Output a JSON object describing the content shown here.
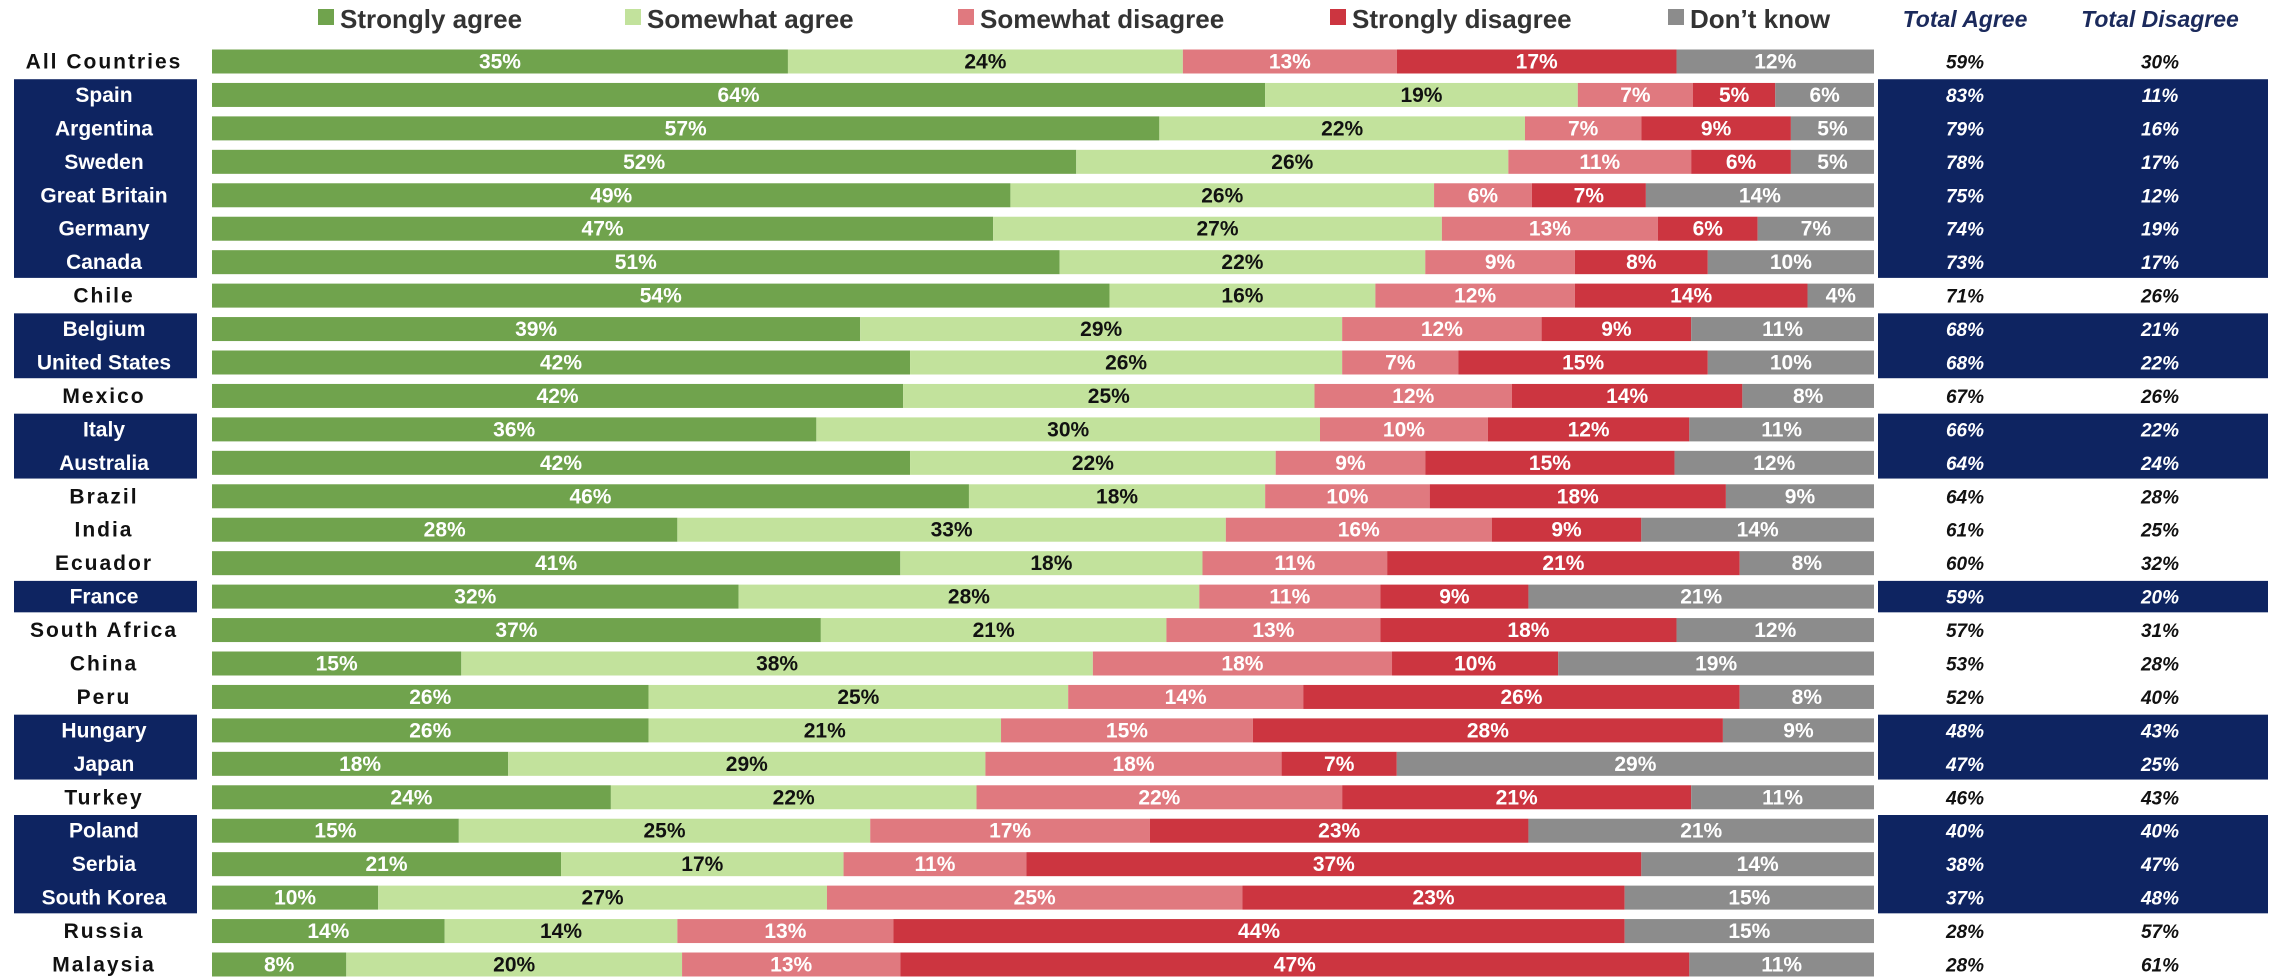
{
  "chart_data": {
    "type": "bar",
    "orientation": "horizontal",
    "stacked": true,
    "title": "",
    "xlabel": "",
    "ylabel": "",
    "xlim": [
      0,
      100
    ],
    "grid": false,
    "legend_position": "top",
    "colors": {
      "strongly_agree": "#70a34d",
      "somewhat_agree": "#c2e29c",
      "somewhat_disagree": "#e0797f",
      "strongly_disagree": "#cc3540",
      "dont_know": "#8c8c8c",
      "highlight_band": "#0e2461"
    },
    "series_colors": [
      "#70a34d",
      "#c2e29c",
      "#e0797f",
      "#cc3540",
      "#8c8c8c"
    ],
    "series_label_colors": [
      "#ffffff",
      "#111111",
      "#ffffff",
      "#ffffff",
      "#ffffff"
    ],
    "categories": [
      "All Countries",
      "Spain",
      "Argentina",
      "Sweden",
      "Great Britain",
      "Germany",
      "Canada",
      "Chile",
      "Belgium",
      "United States",
      "Mexico",
      "Italy",
      "Australia",
      "Brazil",
      "India",
      "Ecuador",
      "France",
      "South Africa",
      "China",
      "Peru",
      "Hungary",
      "Japan",
      "Turkey",
      "Poland",
      "Serbia",
      "South Korea",
      "Russia",
      "Malaysia"
    ],
    "highlighted": [
      false,
      true,
      true,
      true,
      true,
      true,
      true,
      false,
      true,
      true,
      false,
      true,
      true,
      false,
      false,
      false,
      true,
      false,
      false,
      false,
      true,
      true,
      false,
      true,
      true,
      true,
      false,
      false
    ],
    "series": [
      {
        "name": "Strongly agree",
        "values": [
          35,
          64,
          57,
          52,
          49,
          47,
          51,
          54,
          39,
          42,
          42,
          36,
          42,
          46,
          28,
          41,
          32,
          37,
          15,
          26,
          26,
          18,
          24,
          15,
          21,
          10,
          14,
          8
        ]
      },
      {
        "name": "Somewhat agree",
        "values": [
          24,
          19,
          22,
          26,
          26,
          27,
          22,
          16,
          29,
          26,
          25,
          30,
          22,
          18,
          33,
          18,
          28,
          21,
          38,
          25,
          21,
          29,
          22,
          25,
          17,
          27,
          14,
          20
        ]
      },
      {
        "name": "Somewhat disagree",
        "values": [
          13,
          7,
          7,
          11,
          6,
          13,
          9,
          12,
          12,
          7,
          12,
          10,
          9,
          10,
          16,
          11,
          11,
          13,
          18,
          14,
          15,
          18,
          22,
          17,
          11,
          25,
          13,
          13
        ]
      },
      {
        "name": "Strongly disagree",
        "values": [
          17,
          5,
          9,
          6,
          7,
          6,
          8,
          14,
          9,
          15,
          14,
          12,
          15,
          18,
          9,
          21,
          9,
          18,
          10,
          26,
          28,
          7,
          21,
          23,
          37,
          23,
          44,
          47
        ]
      },
      {
        "name": "Don’t know",
        "values": [
          12,
          6,
          5,
          5,
          14,
          7,
          10,
          4,
          11,
          10,
          8,
          11,
          12,
          9,
          14,
          8,
          21,
          12,
          19,
          8,
          9,
          29,
          11,
          21,
          14,
          15,
          15,
          11
        ]
      }
    ],
    "totals": {
      "agree_header": "Total Agree",
      "disagree_header": "Total Disagree",
      "agree": [
        59,
        83,
        79,
        78,
        75,
        74,
        73,
        71,
        68,
        68,
        67,
        66,
        64,
        64,
        61,
        60,
        59,
        57,
        53,
        52,
        48,
        47,
        46,
        40,
        38,
        37,
        28,
        28
      ],
      "disagree": [
        30,
        11,
        16,
        17,
        12,
        19,
        17,
        26,
        21,
        22,
        26,
        22,
        24,
        28,
        25,
        32,
        20,
        31,
        28,
        40,
        43,
        25,
        43,
        40,
        47,
        48,
        57,
        61
      ]
    },
    "value_suffix": "%"
  }
}
